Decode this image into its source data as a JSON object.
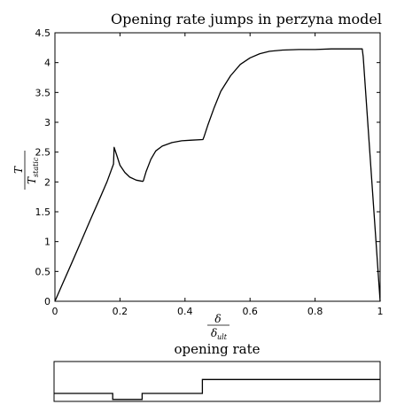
{
  "chart_data": [
    {
      "type": "line",
      "title": "Opening rate jumps in perzyna model",
      "xlabel": {
        "num": "δ",
        "den_base": "δ",
        "den_sub": "ult"
      },
      "ylabel": {
        "num": "T",
        "den_base": "T",
        "den_sub": "static"
      },
      "xlim": [
        0,
        1
      ],
      "ylim": [
        0,
        4.5
      ],
      "xticks": [
        0,
        0.2,
        0.4,
        0.6,
        0.8,
        1
      ],
      "xtick_labels": [
        "0",
        "0.2",
        "0.4",
        "0.6",
        "0.8",
        "1"
      ],
      "yticks": [
        0,
        0.5,
        1,
        1.5,
        2,
        2.5,
        3,
        3.5,
        4,
        4.5
      ],
      "ytick_labels": [
        "0",
        "0.5",
        "1",
        "1.5",
        "2",
        "2.5",
        "3",
        "3.5",
        "4",
        "4.5"
      ],
      "grid": false,
      "series": [
        {
          "color": "#000000",
          "x": [
            0,
            0.02,
            0.05,
            0.08,
            0.11,
            0.14,
            0.16,
            0.18,
            0.182,
            0.19,
            0.2,
            0.215,
            0.23,
            0.25,
            0.27,
            0.272,
            0.28,
            0.295,
            0.31,
            0.33,
            0.36,
            0.39,
            0.42,
            0.455,
            0.458,
            0.47,
            0.49,
            0.51,
            0.54,
            0.57,
            0.6,
            0.63,
            0.66,
            0.7,
            0.75,
            0.8,
            0.85,
            0.9,
            0.945,
            0.948,
            1.0
          ],
          "y": [
            0,
            0.25,
            0.62,
            1.0,
            1.38,
            1.75,
            2.0,
            2.3,
            2.58,
            2.45,
            2.28,
            2.16,
            2.08,
            2.03,
            2.01,
            2.02,
            2.17,
            2.38,
            2.52,
            2.6,
            2.66,
            2.69,
            2.7,
            2.71,
            2.75,
            2.95,
            3.25,
            3.52,
            3.78,
            3.97,
            4.08,
            4.15,
            4.19,
            4.21,
            4.22,
            4.22,
            4.23,
            4.23,
            4.23,
            4.1,
            0
          ]
        }
      ]
    },
    {
      "type": "line",
      "title": "opening rate",
      "xlim": [
        0,
        1
      ],
      "ylim": [
        0,
        1
      ],
      "grid": false,
      "series": [
        {
          "color": "#000000",
          "x": [
            0,
            0.18,
            0.18,
            0.27,
            0.27,
            0.455,
            0.455,
            1.0
          ],
          "y": [
            0.2,
            0.2,
            0.05,
            0.05,
            0.2,
            0.2,
            0.55,
            0.55
          ]
        }
      ]
    }
  ]
}
